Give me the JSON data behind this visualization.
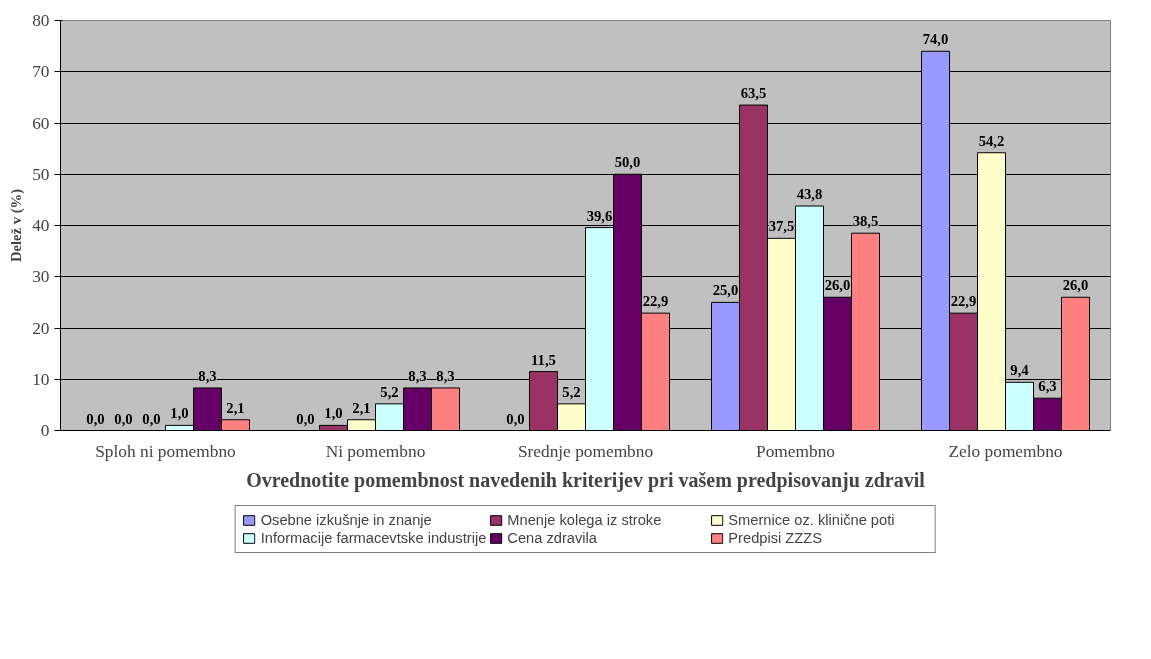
{
  "chart_data": {
    "type": "bar",
    "xlabel": "Ovrednotite pomembnost navedenih kriterijev pri vašem predpisovanju zdravil",
    "ylabel": "Delež v (%)",
    "categories": [
      "Sploh ni pomembno",
      "Ni pomembno",
      "Srednje pomembno",
      "Pomembno",
      "Zelo pomembno"
    ],
    "ylim": [
      0,
      80
    ],
    "yticks": [
      0,
      10,
      20,
      30,
      40,
      50,
      60,
      70,
      80
    ],
    "grid": "y",
    "legend": "bottom",
    "series": [
      {
        "name": "Osebne izkušnje in znanje",
        "color": "#9999ff",
        "values": [
          0.0,
          0.0,
          0.0,
          25.0,
          74.0
        ],
        "value_labels": [
          "0,0",
          "0,0",
          "0,0",
          "25,0",
          "74,0"
        ]
      },
      {
        "name": "Mnenje kolega iz stroke",
        "color": "#993366",
        "values": [
          0.0,
          1.0,
          11.5,
          63.5,
          22.9
        ],
        "value_labels": [
          "0,0",
          "1,0",
          "11,5",
          "63,5",
          "22,9"
        ]
      },
      {
        "name": "Smernice oz. klinične poti",
        "color": "#ffffcc",
        "values": [
          0.0,
          2.1,
          5.2,
          37.5,
          54.2
        ],
        "value_labels": [
          "0,0",
          "2,1",
          "5,2",
          "37,5",
          "54,2"
        ]
      },
      {
        "name": "Informacije farmacevtske industrije",
        "color": "#ccffff",
        "values": [
          1.0,
          5.2,
          39.6,
          43.8,
          9.4
        ],
        "value_labels": [
          "1,0",
          "5,2",
          "39,6",
          "43,8",
          "9,4"
        ]
      },
      {
        "name": "Cena zdravila",
        "color": "#660066",
        "values": [
          8.3,
          8.3,
          50.0,
          26.0,
          6.3
        ],
        "value_labels": [
          "8,3",
          "8,3",
          "50,0",
          "26,0",
          "6,3"
        ]
      },
      {
        "name": "Predpisi ZZZS",
        "color": "#ff8080",
        "values": [
          2.1,
          8.3,
          22.9,
          38.5,
          26.0
        ],
        "value_labels": [
          "2,1",
          "8,3",
          "22,9",
          "38,5",
          "26,0"
        ]
      }
    ]
  }
}
